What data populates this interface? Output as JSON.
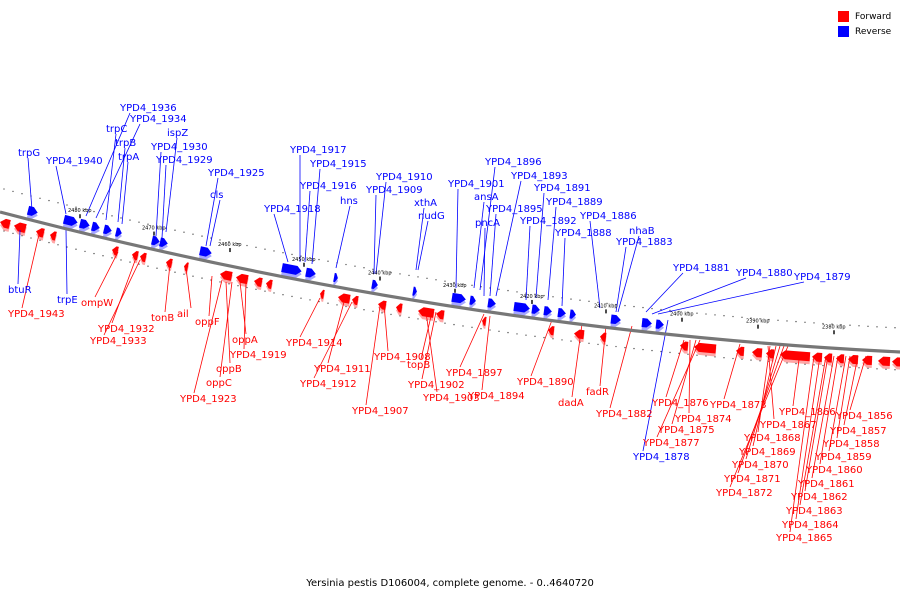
{
  "legend": {
    "forward_label": "Forward",
    "reverse_label": "Reverse",
    "forward_color": "#ff0000",
    "reverse_color": "#0000ff"
  },
  "caption": "Yersinia pestis D106004, complete genome. - 0..4640720",
  "ticks": [
    "2480 kbp",
    "2470 kbp",
    "2460 kbp",
    "2450 kbp",
    "2440 kbp",
    "2430 kbp",
    "2420 kbp",
    "2410 kbp",
    "2400 kbp",
    "2390 kbp",
    "2380 kbp"
  ],
  "reverse_labels_top": [
    "trpG",
    "YPD4_1940",
    "YPD4_1936",
    "YPD4_1934",
    "trpC",
    "trpB",
    "trpA",
    "ispZ",
    "YPD4_1930",
    "YPD4_1929",
    "YPD4_1925",
    "cls",
    "YPD4_1917",
    "YPD4_1915",
    "YPD4_1916",
    "YPD4_1918",
    "hns",
    "YPD4_1910",
    "YPD4_1909",
    "xthA",
    "nudG",
    "YPD4_1901",
    "ansA",
    "YPD4_1896",
    "YPD4_1893",
    "YPD4_1895",
    "pncA",
    "YPD4_1891",
    "YPD4_1889",
    "YPD4_1892",
    "YPD4_1886",
    "YPD4_1888",
    "nhaB",
    "YPD4_1883",
    "YPD4_1881",
    "YPD4_1880",
    "YPD4_1879"
  ],
  "reverse_labels_bottom": [
    "btuR",
    "trpE",
    "YPD4_1878"
  ],
  "forward_labels": [
    "YPD4_1943",
    "ompW",
    "YPD4_1932",
    "YPD4_1933",
    "tonB",
    "ail",
    "oppF",
    "oppA",
    "YPD4_1919",
    "oppB",
    "oppC",
    "YPD4_1923",
    "YPD4_1914",
    "YPD4_1911",
    "YPD4_1912",
    "YPD4_1908",
    "YPD4_1907",
    "topB",
    "YPD4_1902",
    "YPD4_1903",
    "YPD4_1897",
    "YPD4_1894",
    "YPD4_1890",
    "dadA",
    "fadR",
    "YPD4_1882",
    "YPD4_1876",
    "YPD4_1874",
    "YPD4_1875",
    "YPD4_1877",
    "YPD4_1873",
    "YPD4_1867",
    "YPD4_1868",
    "YPD4_1869",
    "YPD4_1870",
    "YPD4_1871",
    "YPD4_1872",
    "YPD4_1866",
    "YPD4_1856",
    "YPD4_1857",
    "YPD4_1858",
    "YPD4_1859",
    "YPD4_1860",
    "YPD4_1861",
    "YPD4_1862",
    "YPD4_1863",
    "YPD4_1864",
    "YPD4_1865"
  ]
}
